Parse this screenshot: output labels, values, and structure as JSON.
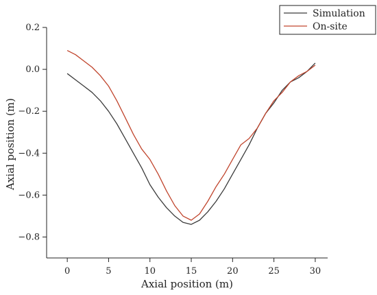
{
  "chart_data": {
    "type": "line",
    "title": "",
    "xlabel": "Axial position (m)",
    "ylabel": "Axial position (m)",
    "xlim": [
      -2.5,
      31.5
    ],
    "ylim": [
      -0.9,
      0.2
    ],
    "x_ticks": [
      0,
      5,
      10,
      15,
      20,
      25,
      30
    ],
    "y_ticks": [
      0.2,
      0.0,
      -0.2,
      -0.4,
      -0.6,
      -0.8
    ],
    "y_tick_labels": [
      "0.2",
      "0.0",
      "−0.2",
      "−0.4",
      "−0.6",
      "−0.8"
    ],
    "grid": false,
    "legend_position": "top-right",
    "series": [
      {
        "name": "Simulation",
        "color": "#3a3a3a",
        "x": [
          0,
          1,
          2,
          3,
          4,
          5,
          6,
          7,
          8,
          9,
          10,
          11,
          12,
          13,
          14,
          15,
          16,
          17,
          18,
          19,
          20,
          21,
          22,
          23,
          24,
          25,
          26,
          27,
          28,
          29,
          30
        ],
        "y": [
          -0.02,
          -0.05,
          -0.08,
          -0.11,
          -0.15,
          -0.2,
          -0.26,
          -0.33,
          -0.4,
          -0.47,
          -0.55,
          -0.61,
          -0.66,
          -0.7,
          -0.73,
          -0.74,
          -0.72,
          -0.68,
          -0.63,
          -0.57,
          -0.5,
          -0.43,
          -0.36,
          -0.28,
          -0.21,
          -0.16,
          -0.1,
          -0.06,
          -0.04,
          -0.01,
          0.03
        ]
      },
      {
        "name": "On-site",
        "color": "#c0442c",
        "x": [
          0,
          1,
          2,
          3,
          4,
          5,
          6,
          7,
          8,
          9,
          10,
          11,
          12,
          13,
          14,
          15,
          16,
          17,
          18,
          19,
          20,
          21,
          22,
          23,
          24,
          25,
          26,
          27,
          28,
          29,
          30
        ],
        "y": [
          0.09,
          0.07,
          0.04,
          0.01,
          -0.03,
          -0.08,
          -0.15,
          -0.23,
          -0.31,
          -0.38,
          -0.43,
          -0.5,
          -0.58,
          -0.65,
          -0.7,
          -0.72,
          -0.69,
          -0.63,
          -0.56,
          -0.5,
          -0.43,
          -0.36,
          -0.33,
          -0.28,
          -0.21,
          -0.15,
          -0.11,
          -0.06,
          -0.03,
          -0.01,
          0.02
        ]
      }
    ]
  }
}
